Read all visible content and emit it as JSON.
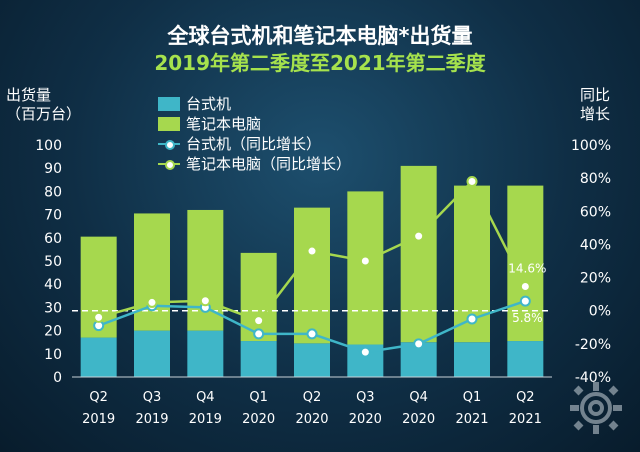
{
  "chart_data": {
    "type": "bar",
    "title": "全球台式机和笔记本电脑*出货量",
    "subtitle": "2019年第二季度至2021年第二季度",
    "ylabel_left": [
      "出货量",
      "（百万台）"
    ],
    "ylabel_right": [
      "同比",
      "增长"
    ],
    "categories": [
      [
        "Q2",
        "2019"
      ],
      [
        "Q3",
        "2019"
      ],
      [
        "Q4",
        "2019"
      ],
      [
        "Q1",
        "2020"
      ],
      [
        "Q2",
        "2020"
      ],
      [
        "Q3",
        "2020"
      ],
      [
        "Q4",
        "2020"
      ],
      [
        "Q1",
        "2021"
      ],
      [
        "Q2",
        "2021"
      ]
    ],
    "ylim_left": [
      0,
      100
    ],
    "yticks_left": [
      0,
      10,
      20,
      30,
      40,
      50,
      60,
      70,
      80,
      90,
      100
    ],
    "ylim_right": [
      -40,
      100
    ],
    "yticks_right": [
      "-40%",
      "-20%",
      "0%",
      "20%",
      "40%",
      "60%",
      "80%",
      "100%"
    ],
    "yticks_right_values": [
      -40,
      -20,
      0,
      20,
      40,
      60,
      80,
      100
    ],
    "stacked": true,
    "series": [
      {
        "name": "台式机",
        "type": "bar",
        "color": "#3fb6c8",
        "values": [
          17,
          20,
          20,
          15.5,
          14.5,
          14,
          15,
          15,
          15.5
        ]
      },
      {
        "name": "笔记本电脑",
        "type": "bar",
        "color": "#a6d84e",
        "values": [
          43.5,
          50.5,
          52,
          38,
          58.5,
          66,
          76,
          67.5,
          67
        ]
      },
      {
        "name": "台式机（同比增长）",
        "type": "line",
        "axis": "right",
        "color": "#3fb6c8",
        "values": [
          -9,
          3,
          2,
          -14,
          -14,
          -25,
          -20,
          -5,
          5.8
        ]
      },
      {
        "name": "笔记本电脑（同比增长）",
        "type": "line",
        "axis": "right",
        "color": "#a6d84e",
        "values": [
          -4,
          5,
          6,
          -6,
          36,
          30,
          45,
          78,
          14.6
        ]
      }
    ],
    "annotations": [
      {
        "text": "14.6%",
        "series": 3,
        "index": 8
      },
      {
        "text": "5.8%",
        "series": 2,
        "index": 8
      }
    ],
    "reference_line": {
      "axis": "right",
      "value": 0,
      "style": "dashed",
      "color": "#ffffff"
    },
    "legend_position": "top-left",
    "grid": false
  }
}
